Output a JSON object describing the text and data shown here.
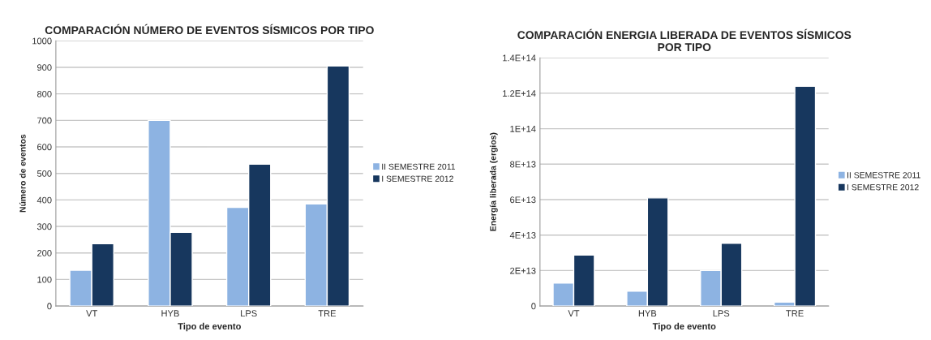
{
  "chart_data": [
    {
      "type": "bar",
      "title": "COMPARACIÓN NÚMERO DE EVENTOS SÍSMICOS POR TIPO",
      "xlabel": "Tipo de evento",
      "ylabel": "Número de eventos",
      "categories": [
        "VT",
        "HYB",
        "LPS",
        "TRE"
      ],
      "series": [
        {
          "name": "II SEMESTRE 2011",
          "color": "#8db3e2",
          "values": [
            135,
            700,
            372,
            385
          ]
        },
        {
          "name": "I SEMESTRE 2012",
          "color": "#17375e",
          "values": [
            235,
            278,
            535,
            905
          ]
        }
      ],
      "ylim": [
        0,
        1000
      ],
      "yticks": [
        0,
        100,
        200,
        300,
        400,
        500,
        600,
        700,
        800,
        900,
        1000
      ],
      "grid": "y",
      "legend": "right"
    },
    {
      "type": "bar",
      "title": "COMPARACIÓN ENERGIA LIBERADA DE EVENTOS SÍSMICOS\nPOR TIPO",
      "xlabel": "Tipo de evento",
      "ylabel": "Energía liberada (ergios)",
      "categories": [
        "VT",
        "HYB",
        "LPS",
        "TRE"
      ],
      "series": [
        {
          "name": "II SEMESTRE 2011",
          "color": "#8db3e2",
          "values": [
            12900000000000.0,
            8400000000000.0,
            20000000000000.0,
            2200000000000.0
          ]
        },
        {
          "name": "I SEMESTRE 2012",
          "color": "#17375e",
          "values": [
            28700000000000.0,
            61000000000000.0,
            35400000000000.0,
            124000000000000.0
          ]
        }
      ],
      "ylim": [
        0,
        140000000000000.0
      ],
      "yticks": [
        0,
        {
          "value": 20000000000000.0,
          "label": "2E+13"
        },
        {
          "value": 40000000000000.0,
          "label": "4E+13"
        },
        {
          "value": 60000000000000.0,
          "label": "6E+13"
        },
        {
          "value": 80000000000000.0,
          "label": "8E+13"
        },
        {
          "value": 100000000000000.0,
          "label": "1E+14"
        },
        {
          "value": 120000000000000.0,
          "label": "1.2E+14"
        },
        {
          "value": 140000000000000.0,
          "label": "1.4E+14"
        }
      ],
      "grid": "y",
      "legend": "right"
    }
  ]
}
